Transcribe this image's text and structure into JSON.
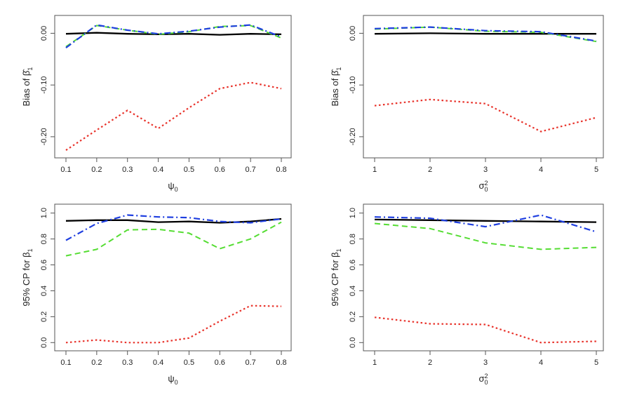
{
  "colors": {
    "black": "#000000",
    "red": "#e8322a",
    "green": "#55dd33",
    "blue": "#1f3fe0",
    "frame": "#555555"
  },
  "chart_data": [
    {
      "type": "line",
      "xlabel": "ψ0",
      "ylabel": "Bias of β̂1",
      "x": [
        0.1,
        0.2,
        0.3,
        0.4,
        0.5,
        0.6,
        0.7,
        0.8
      ],
      "xticks": [
        "0.1",
        "0.2",
        "0.3",
        "0.4",
        "0.5",
        "0.6",
        "0.7",
        "0.8"
      ],
      "yticks": [
        "0.00",
        "-0.10",
        "-0.20"
      ],
      "ytick_values": [
        0.0,
        -0.1,
        -0.2
      ],
      "xlim": [
        0.1,
        0.8
      ],
      "ylim": [
        -0.23,
        0.025
      ],
      "series": [
        {
          "color": "black",
          "style": "solid",
          "values": [
            -0.001,
            0.001,
            -0.001,
            -0.002,
            -0.001,
            -0.003,
            -0.001,
            -0.002
          ]
        },
        {
          "color": "red",
          "style": "dotted",
          "values": [
            -0.226,
            -0.187,
            -0.149,
            -0.184,
            -0.144,
            -0.107,
            -0.095,
            -0.107
          ]
        },
        {
          "color": "green",
          "style": "dashed",
          "values": [
            -0.026,
            0.015,
            0.006,
            -0.002,
            0.003,
            0.013,
            0.015,
            -0.009
          ]
        },
        {
          "color": "blue",
          "style": "dashdot",
          "values": [
            -0.028,
            0.016,
            0.006,
            -0.001,
            0.004,
            0.012,
            0.016,
            -0.007
          ]
        }
      ]
    },
    {
      "type": "line",
      "xlabel": "σ0²",
      "ylabel": "Bias of β̂1",
      "x": [
        1,
        2,
        3,
        4,
        5
      ],
      "xticks": [
        "1",
        "2",
        "3",
        "4",
        "5"
      ],
      "yticks": [
        "0.00",
        "-0.10",
        "-0.20"
      ],
      "ytick_values": [
        0.0,
        -0.1,
        -0.2
      ],
      "xlim": [
        1,
        5
      ],
      "ylim": [
        -0.23,
        0.025
      ],
      "series": [
        {
          "color": "black",
          "style": "solid",
          "values": [
            -0.001,
            0.0,
            -0.001,
            -0.001,
            -0.001
          ]
        },
        {
          "color": "red",
          "style": "dotted",
          "values": [
            -0.14,
            -0.128,
            -0.136,
            -0.19,
            -0.163
          ]
        },
        {
          "color": "green",
          "style": "dashed",
          "values": [
            0.008,
            0.012,
            0.004,
            0.002,
            -0.016
          ]
        },
        {
          "color": "blue",
          "style": "dashdot",
          "values": [
            0.009,
            0.012,
            0.005,
            0.003,
            -0.015
          ]
        }
      ]
    },
    {
      "type": "line",
      "xlabel": "ψ0",
      "ylabel": "95% CP for β1",
      "x": [
        0.1,
        0.2,
        0.3,
        0.4,
        0.5,
        0.6,
        0.7,
        0.8
      ],
      "xticks": [
        "0.1",
        "0.2",
        "0.3",
        "0.4",
        "0.5",
        "0.6",
        "0.7",
        "0.8"
      ],
      "yticks": [
        "0.0",
        "0.2",
        "0.4",
        "0.6",
        "0.8",
        "1.0"
      ],
      "ytick_values": [
        0.0,
        0.2,
        0.4,
        0.6,
        0.8,
        1.0
      ],
      "xlim": [
        0.1,
        0.8
      ],
      "ylim": [
        -0.02,
        1.02
      ],
      "series": [
        {
          "color": "black",
          "style": "solid",
          "values": [
            0.94,
            0.945,
            0.945,
            0.93,
            0.935,
            0.925,
            0.935,
            0.955
          ]
        },
        {
          "color": "red",
          "style": "dotted",
          "values": [
            0.0,
            0.02,
            0.0,
            0.0,
            0.035,
            0.165,
            0.285,
            0.28
          ]
        },
        {
          "color": "green",
          "style": "dashed",
          "values": [
            0.67,
            0.72,
            0.87,
            0.875,
            0.845,
            0.725,
            0.8,
            0.93
          ]
        },
        {
          "color": "blue",
          "style": "dashdot",
          "values": [
            0.79,
            0.92,
            0.985,
            0.97,
            0.965,
            0.935,
            0.925,
            0.955
          ]
        }
      ]
    },
    {
      "type": "line",
      "xlabel": "σ0²",
      "ylabel": "95% CP for β1",
      "x": [
        1,
        2,
        3,
        4,
        5
      ],
      "xticks": [
        "1",
        "2",
        "3",
        "4",
        "5"
      ],
      "yticks": [
        "0.0",
        "0.2",
        "0.4",
        "0.6",
        "0.8",
        "1.0"
      ],
      "ytick_values": [
        0.0,
        0.2,
        0.4,
        0.6,
        0.8,
        1.0
      ],
      "xlim": [
        1,
        5
      ],
      "ylim": [
        -0.02,
        1.02
      ],
      "series": [
        {
          "color": "black",
          "style": "solid",
          "values": [
            0.95,
            0.945,
            0.94,
            0.935,
            0.93
          ]
        },
        {
          "color": "red",
          "style": "dotted",
          "values": [
            0.195,
            0.145,
            0.14,
            0.0,
            0.01
          ]
        },
        {
          "color": "green",
          "style": "dashed",
          "values": [
            0.92,
            0.88,
            0.77,
            0.72,
            0.735
          ]
        },
        {
          "color": "blue",
          "style": "dashdot",
          "values": [
            0.97,
            0.96,
            0.895,
            0.985,
            0.855
          ]
        }
      ]
    }
  ]
}
